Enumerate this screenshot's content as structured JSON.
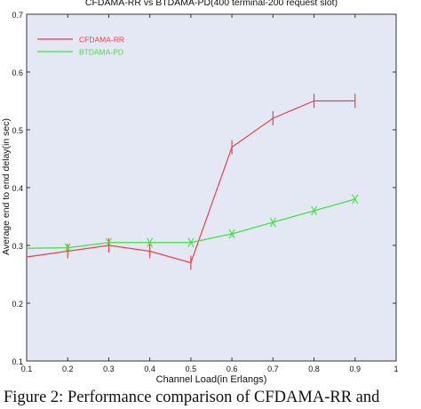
{
  "chart_data": {
    "type": "line",
    "title": "CFDAMA-RR vs BTDAMA-PD(400 terminal-200 request slot)",
    "xlabel": "Channel Load(in Erlangs)",
    "ylabel": "Average end to end delay(in sec)",
    "xlim": [
      0.1,
      1
    ],
    "ylim": [
      0.1,
      0.7
    ],
    "xticks": [
      "0.1",
      "0.2",
      "0.3",
      "0.4",
      "0.5",
      "0.6",
      "0.7",
      "0.8",
      "0.9",
      "1"
    ],
    "yticks": [
      "0.1",
      "0.2",
      "0.3",
      "0.4",
      "0.5",
      "0.6",
      "0.7"
    ],
    "grid": false,
    "legend_position": "top-left",
    "series": [
      {
        "name": "CFDAMA-RR",
        "color": "#e8434b",
        "x": [
          0.1,
          0.2,
          0.3,
          0.4,
          0.5,
          0.6,
          0.7,
          0.8,
          0.9
        ],
        "y": [
          0.28,
          0.29,
          0.3,
          0.29,
          0.27,
          0.47,
          0.52,
          0.55,
          0.55
        ]
      },
      {
        "name": "BTDAMA-PD",
        "color": "#3fe03f",
        "x": [
          0.1,
          0.2,
          0.3,
          0.4,
          0.5,
          0.6,
          0.7,
          0.8,
          0.9
        ],
        "y": [
          0.295,
          0.296,
          0.305,
          0.305,
          0.305,
          0.32,
          0.34,
          0.36,
          0.38
        ]
      }
    ]
  },
  "caption": "Figure 2: Performance comparison of CFDAMA-RR and",
  "colors": {
    "plot_background": "#e4e8f4",
    "axis": "#333333"
  }
}
